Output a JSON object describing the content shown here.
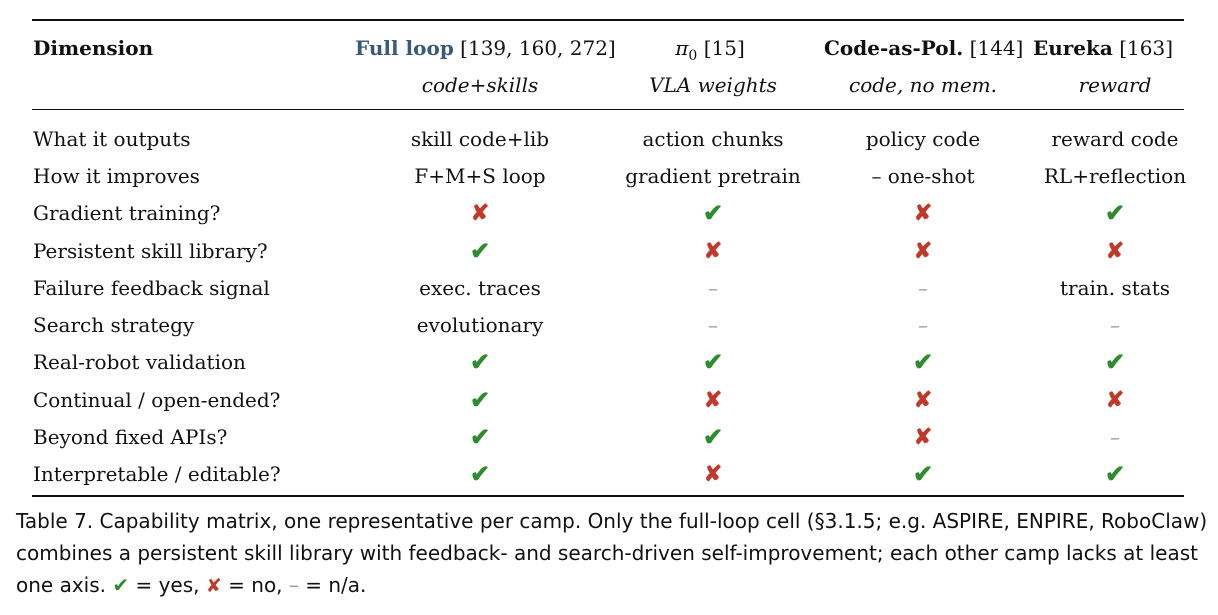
{
  "header": {
    "dimension": "Dimension",
    "cols": [
      {
        "name": "Full loop",
        "ref": "[139, 160, 272]",
        "sub": "code+skills"
      },
      {
        "name": "π",
        "name_sub": "0",
        "ref": "[15]",
        "sub": "VLA weights"
      },
      {
        "name": "Code-as-Pol.",
        "ref": "[144]",
        "sub": "code, no mem."
      },
      {
        "name": "Eureka",
        "ref": "[163]",
        "sub": "reward"
      }
    ]
  },
  "rows": [
    {
      "label": "What it outputs",
      "cells": [
        "skill code+lib",
        "action chunks",
        "policy code",
        "reward code"
      ]
    },
    {
      "label": "How it improves",
      "cells": [
        "F+M+S loop",
        "gradient pretrain",
        "– one-shot",
        "RL+reflection"
      ]
    },
    {
      "label": "Gradient training?",
      "cells": [
        "✘",
        "✔",
        "✘",
        "✔"
      ]
    },
    {
      "label": "Persistent skill library?",
      "cells": [
        "✔",
        "✘",
        "✘",
        "✘"
      ]
    },
    {
      "label": "Failure feedback signal",
      "cells": [
        "exec. traces",
        "–",
        "–",
        "train. stats"
      ]
    },
    {
      "label": "Search strategy",
      "cells": [
        "evolutionary",
        "–",
        "–",
        "–"
      ]
    },
    {
      "label": "Real-robot validation",
      "cells": [
        "✔",
        "✔",
        "✔",
        "✔"
      ]
    },
    {
      "label": "Continual / open-ended?",
      "cells": [
        "✔",
        "✘",
        "✘",
        "✘"
      ]
    },
    {
      "label": "Beyond fixed APIs?",
      "cells": [
        "✔",
        "✔",
        "✘",
        "–"
      ]
    },
    {
      "label": "Interpretable / editable?",
      "cells": [
        "✔",
        "✘",
        "✔",
        "✔"
      ]
    }
  ],
  "caption": {
    "lead": "Table 7.  Capability matrix, one representative per camp. Only the full-loop cell (§3.1.5; e.g. ASPIRE, ENPIRE, RoboClaw) combines a persistent skill library with feedback- and search-driven self-improvement; each other camp lacks at least one axis. ",
    "yes_mark": "✔",
    "yes_text": " = yes, ",
    "no_mark": "✘",
    "no_text": " = no, ",
    "na_mark": "–",
    "na_text": " = n/a."
  },
  "colors": {
    "check": "#2e8b2e",
    "cross": "#c0392b",
    "dash": "#9a9a9a",
    "header_accent": "#3a5a7d"
  }
}
